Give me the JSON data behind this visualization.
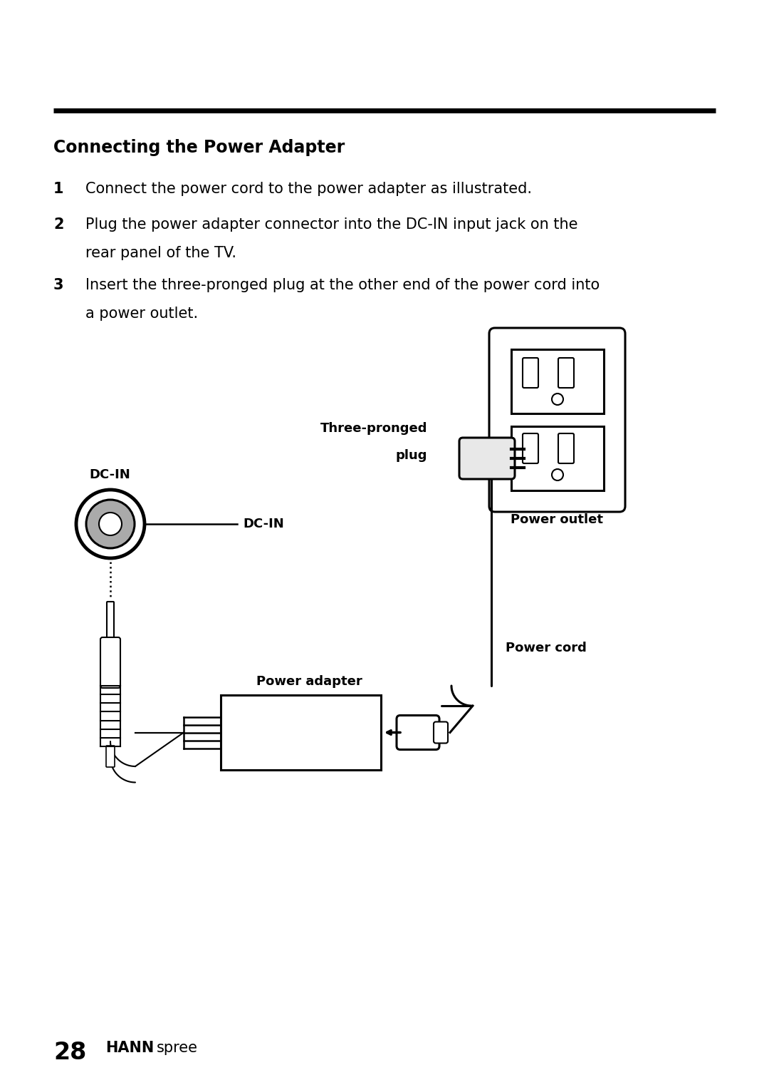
{
  "bg_color": "#ffffff",
  "title": "Connecting the Power Adapter",
  "line1": "Connect the power cord to the power adapter as illustrated.",
  "line2_1": "Plug the power adapter connector into the DC-IN input jack on the",
  "line2_2": "rear panel of the TV.",
  "line3_1": "Insert the three-pronged plug at the other end of the power cord into",
  "line3_2": "a power outlet.",
  "label_three_pronged_1": "Three-pronged",
  "label_three_pronged_2": "plug",
  "label_power_outlet": "Power outlet",
  "label_dc_in_top": "DC-IN",
  "label_dc_in_right": "DC-IN",
  "label_power_cord": "Power cord",
  "label_power_adapter": "Power adapter",
  "footer_28": "28",
  "footer_hann": "HANN",
  "footer_spree": "spree"
}
